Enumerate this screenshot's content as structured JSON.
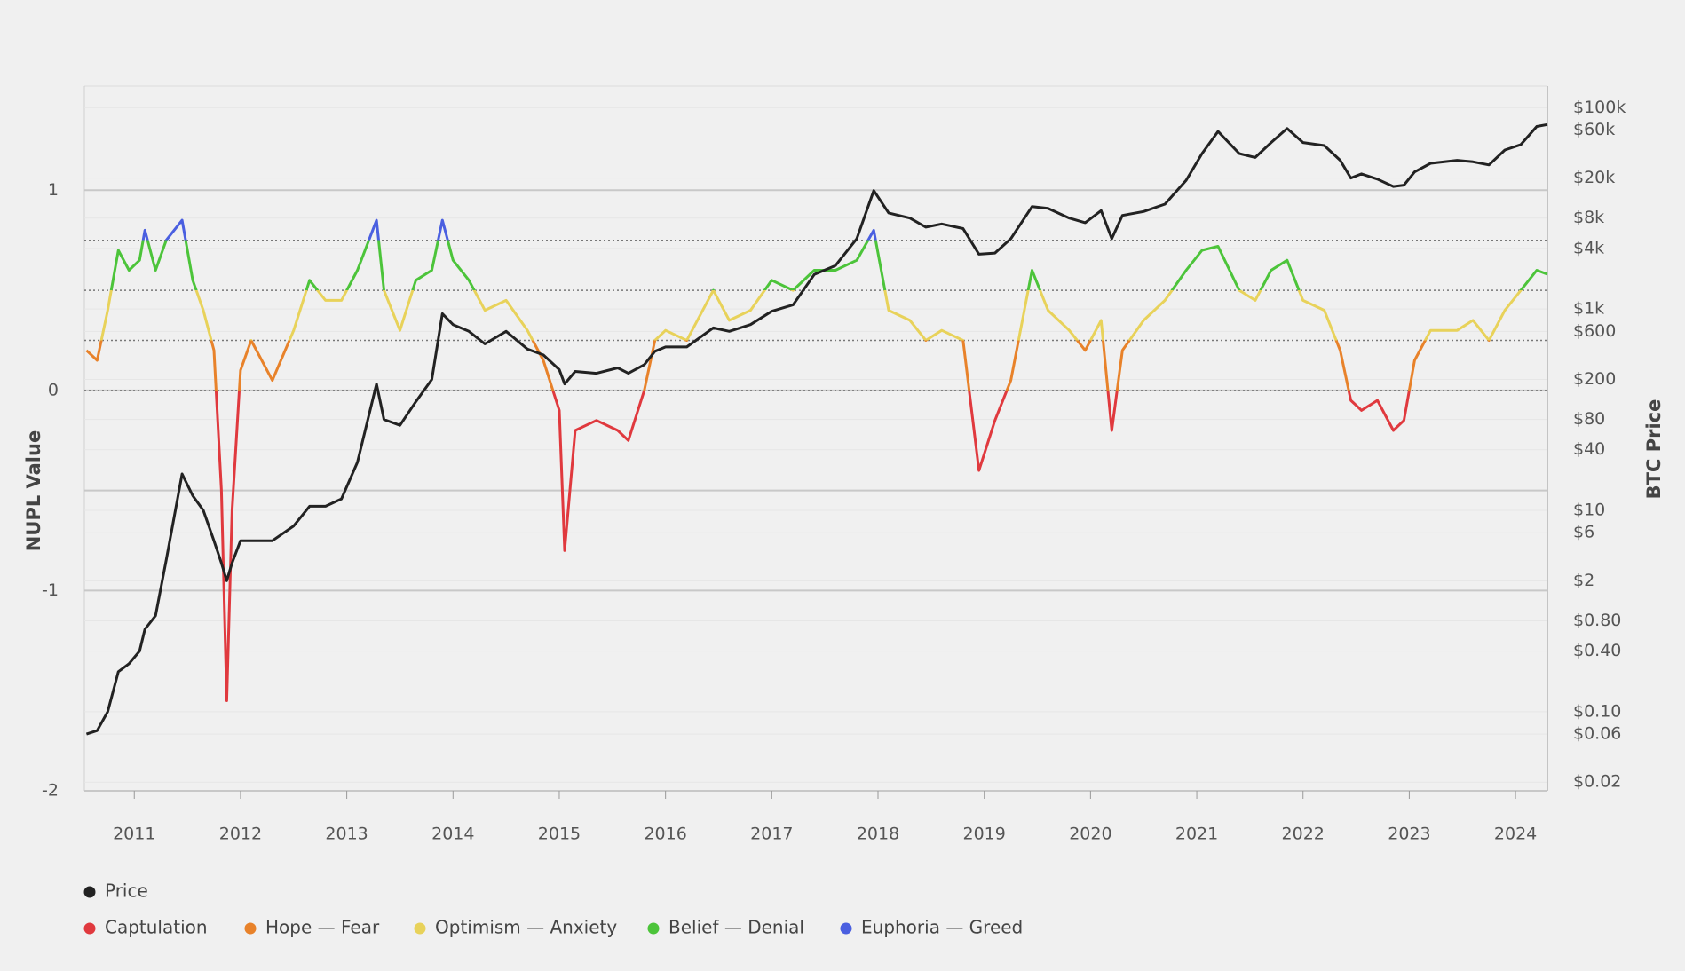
{
  "chart_data": {
    "type": "line",
    "ylabel": "NUPL Value",
    "y2label": "BTC Price",
    "y2scale": "log",
    "xlim": [
      2010.53,
      2024.3
    ],
    "xticks": [
      2011,
      2012,
      2013,
      2014,
      2015,
      2016,
      2017,
      2018,
      2019,
      2020,
      2021,
      2022,
      2023,
      2024
    ],
    "ylim": [
      -2,
      1.52
    ],
    "yticks": [
      -2,
      -1,
      0,
      1
    ],
    "ygrid_unlabeled": [
      -0.5
    ],
    "zone_bounds": [
      0,
      0.25,
      0.5,
      0.75
    ],
    "y2lim": [
      0.0164,
      163700
    ],
    "y2ticks": [
      {
        "value": 0.02,
        "label": "$0.02"
      },
      {
        "value": 0.06,
        "label": "$0.06"
      },
      {
        "value": 0.1,
        "label": "$0.10"
      },
      {
        "value": 0.4,
        "label": "$0.40"
      },
      {
        "value": 0.8,
        "label": "$0.80"
      },
      {
        "value": 2,
        "label": "$2"
      },
      {
        "value": 6,
        "label": "$6"
      },
      {
        "value": 10,
        "label": "$10"
      },
      {
        "value": 40,
        "label": "$40"
      },
      {
        "value": 80,
        "label": "$80"
      },
      {
        "value": 200,
        "label": "$200"
      },
      {
        "value": 600,
        "label": "$600"
      },
      {
        "value": 1000,
        "label": "$1k"
      },
      {
        "value": 4000,
        "label": "$4k"
      },
      {
        "value": 8000,
        "label": "$8k"
      },
      {
        "value": 20000,
        "label": "$20k"
      },
      {
        "value": 60000,
        "label": "$60k"
      },
      {
        "value": 100000,
        "label": "$100k"
      }
    ],
    "zones": [
      {
        "name": "Captulation",
        "color": "#e0393e"
      },
      {
        "name": "Hope — Fear",
        "color": "#e8822a"
      },
      {
        "name": "Optimism — Anxiety",
        "color": "#e8d25a"
      },
      {
        "name": "Belief — Denial",
        "color": "#4cc43a"
      },
      {
        "name": "Euphoria — Greed",
        "color": "#4a5fe0"
      }
    ],
    "x": [
      2010.55,
      2010.65,
      2010.75,
      2010.85,
      2010.95,
      2011.05,
      2011.1,
      2011.2,
      2011.3,
      2011.45,
      2011.55,
      2011.65,
      2011.75,
      2011.82,
      2011.87,
      2011.92,
      2012.0,
      2012.1,
      2012.3,
      2012.5,
      2012.65,
      2012.8,
      2012.95,
      2013.1,
      2013.28,
      2013.35,
      2013.5,
      2013.65,
      2013.8,
      2013.9,
      2014.0,
      2014.15,
      2014.3,
      2014.5,
      2014.7,
      2014.85,
      2015.0,
      2015.05,
      2015.15,
      2015.35,
      2015.55,
      2015.65,
      2015.8,
      2015.9,
      2016.0,
      2016.2,
      2016.45,
      2016.6,
      2016.8,
      2017.0,
      2017.2,
      2017.4,
      2017.6,
      2017.8,
      2017.96,
      2018.1,
      2018.3,
      2018.45,
      2018.6,
      2018.8,
      2018.95,
      2019.1,
      2019.25,
      2019.45,
      2019.6,
      2019.8,
      2019.95,
      2020.1,
      2020.2,
      2020.3,
      2020.5,
      2020.7,
      2020.9,
      2021.05,
      2021.2,
      2021.4,
      2021.55,
      2021.7,
      2021.85,
      2022.0,
      2022.2,
      2022.35,
      2022.45,
      2022.55,
      2022.7,
      2022.85,
      2022.95,
      2023.05,
      2023.2,
      2023.45,
      2023.6,
      2023.75,
      2023.9,
      2024.05,
      2024.2,
      2024.3
    ],
    "series": [
      {
        "name": "Price",
        "color": "#222222",
        "axis": "y2",
        "values": [
          0.06,
          0.065,
          0.1,
          0.25,
          0.3,
          0.4,
          0.66,
          0.9,
          3.2,
          23,
          14,
          10,
          5,
          3,
          2,
          3,
          5,
          5,
          5,
          7,
          11,
          11,
          13,
          30,
          180,
          80,
          70,
          120,
          200,
          900,
          700,
          600,
          450,
          600,
          400,
          350,
          250,
          180,
          240,
          230,
          260,
          230,
          280,
          380,
          420,
          420,
          650,
          600,
          700,
          950,
          1100,
          2200,
          2700,
          5000,
          15000,
          9000,
          8000,
          6500,
          7000,
          6300,
          3500,
          3600,
          5000,
          10400,
          10000,
          8000,
          7200,
          9500,
          5000,
          8500,
          9300,
          11000,
          19000,
          35000,
          58000,
          35000,
          32000,
          45000,
          62000,
          45000,
          42000,
          30000,
          20000,
          22000,
          19500,
          16500,
          17000,
          23000,
          28000,
          30000,
          29000,
          27000,
          38000,
          43000,
          65000,
          68000
        ]
      },
      {
        "values": [
          0.2,
          0.15,
          0.4,
          0.7,
          0.6,
          0.65,
          0.8,
          0.6,
          0.75,
          0.85,
          0.55,
          0.4,
          0.2,
          -0.5,
          -1.55,
          -0.6,
          0.1,
          0.25,
          0.05,
          0.3,
          0.55,
          0.45,
          0.45,
          0.6,
          0.85,
          0.5,
          0.3,
          0.55,
          0.6,
          0.85,
          0.65,
          0.55,
          0.4,
          0.45,
          0.3,
          0.15,
          -0.1,
          -0.8,
          -0.2,
          -0.15,
          -0.2,
          -0.25,
          0.0,
          0.25,
          0.3,
          0.25,
          0.5,
          0.35,
          0.4,
          0.55,
          0.5,
          0.6,
          0.6,
          0.65,
          0.8,
          0.4,
          0.35,
          0.25,
          0.3,
          0.25,
          -0.4,
          -0.15,
          0.05,
          0.6,
          0.4,
          0.3,
          0.2,
          0.35,
          -0.2,
          0.2,
          0.35,
          0.45,
          0.6,
          0.7,
          0.72,
          0.5,
          0.45,
          0.6,
          0.65,
          0.45,
          0.4,
          0.2,
          -0.05,
          -0.1,
          -0.05,
          -0.2,
          -0.15,
          0.15,
          0.3,
          0.3,
          0.35,
          0.25,
          0.4,
          0.5,
          0.6,
          0.58
        ]
      }
    ]
  }
}
